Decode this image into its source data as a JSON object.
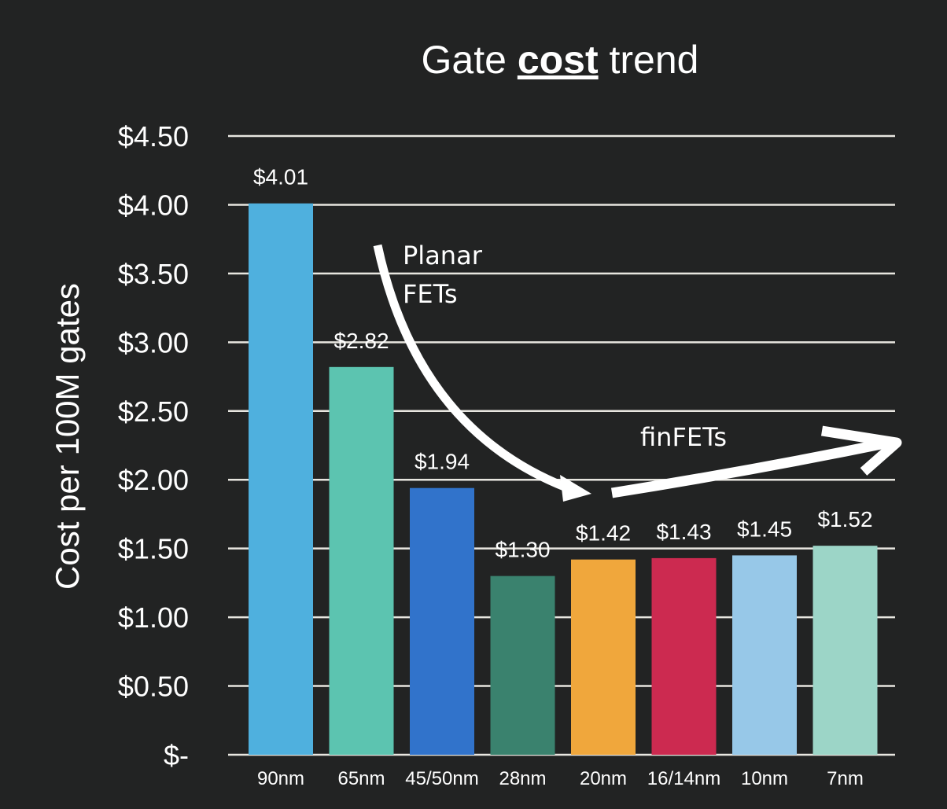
{
  "chart_data": {
    "type": "bar",
    "title_parts": [
      "Gate ",
      "cost",
      " trend"
    ],
    "ylabel": "Cost per 100M gates",
    "xlabel": "",
    "categories": [
      "90nm",
      "65nm",
      "45/50nm",
      "28nm",
      "20nm",
      "16/14nm",
      "10nm",
      "7nm"
    ],
    "values": [
      4.01,
      2.82,
      1.94,
      1.3,
      1.42,
      1.43,
      1.45,
      1.52
    ],
    "data_labels": [
      "$4.01",
      "$2.82",
      "$1.94",
      "$1.30",
      "$1.42",
      "$1.43",
      "$1.45",
      "$1.52"
    ],
    "bar_colors": [
      "#4fb0de",
      "#5cc4b0",
      "#3173cb",
      "#3a826e",
      "#f0a73c",
      "#cc2a50",
      "#97c8e8",
      "#9cd5c7"
    ],
    "yticks": [
      0,
      0.5,
      1,
      1.5,
      2,
      2.5,
      3,
      3.5,
      4,
      4.5
    ],
    "ytick_labels": [
      "$-",
      "$0.50",
      "$1.00",
      "$1.50",
      "$2.00",
      "$2.50",
      "$3.00",
      "$3.50",
      "$4.00",
      "$4.50"
    ],
    "ylim": [
      0,
      4.5
    ],
    "grid": true,
    "annotations": {
      "planar_line1": "Planar",
      "planar_line2": "FETs",
      "finfets": "finFETs"
    },
    "background": "#222323"
  }
}
